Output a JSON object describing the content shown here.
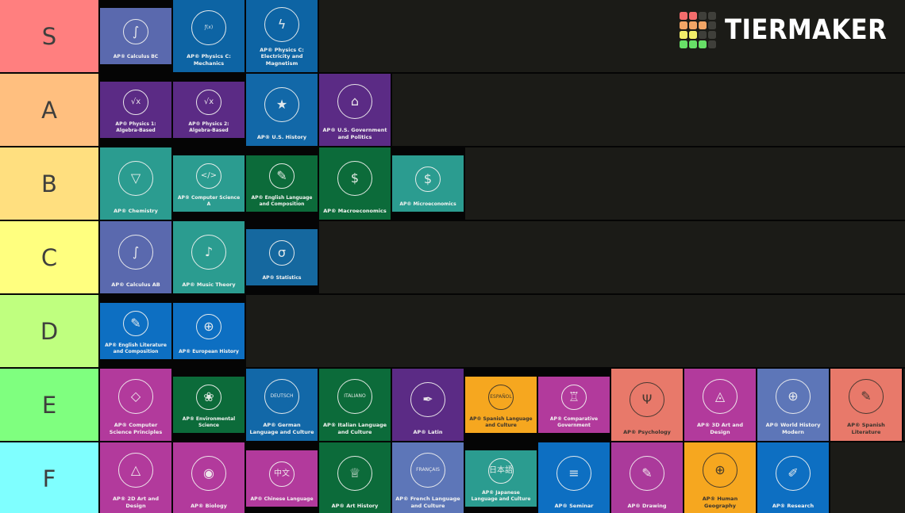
{
  "logo": {
    "text": "TIERMAKER",
    "grid": [
      [
        "#f36c6c",
        "#f36c6c",
        "#3f3f3a",
        "#3f3f3a"
      ],
      [
        "#f2a566",
        "#f2a566",
        "#f2a566",
        "#3f3f3a"
      ],
      [
        "#f2ee69",
        "#f2ee69",
        "#3f3f3a",
        "#3f3f3a"
      ],
      [
        "#67df67",
        "#67df67",
        "#67df67",
        "#3f3f3a"
      ]
    ]
  },
  "tiers": [
    {
      "label": "S",
      "color": "#ff7f7f",
      "cards": [
        {
          "title": "AP® Calculus BC",
          "bg": "#5a69ae",
          "dark": false,
          "letterbox": true,
          "icon": "calculator-formulas-icon",
          "glyph": "∫"
        },
        {
          "title": "AP® Physics C: Mechanics",
          "bg": "#0d64a4",
          "dark": false,
          "letterbox": false,
          "icon": "robot-arm-function-icon",
          "glyph": "ƒ(x)"
        },
        {
          "title": "AP® Physics C: Electricity and Magnetism",
          "bg": "#0d64a4",
          "dark": false,
          "letterbox": false,
          "icon": "lightbulb-circuit-icon",
          "glyph": "ϟ"
        }
      ]
    },
    {
      "label": "A",
      "color": "#ffbf7f",
      "cards": [
        {
          "title": "AP® Physics 1: Algebra-Based",
          "bg": "#5b2b85",
          "dark": false,
          "letterbox": true,
          "icon": "popcorn-equation-icon",
          "glyph": "√x"
        },
        {
          "title": "AP® Physics 2: Algebra-Based",
          "bg": "#5b2b85",
          "dark": false,
          "letterbox": true,
          "icon": "pyramid-equation-icon",
          "glyph": "√x"
        },
        {
          "title": "AP® U.S. History",
          "bg": "#1268a8",
          "dark": false,
          "letterbox": false,
          "icon": "flag-liberty-bell-icon",
          "glyph": "★"
        },
        {
          "title": "AP® U.S. Government and Politics",
          "bg": "#5b2b85",
          "dark": false,
          "letterbox": false,
          "icon": "capitol-building-icon",
          "glyph": "⌂"
        }
      ]
    },
    {
      "label": "B",
      "color": "#ffdf7f",
      "cards": [
        {
          "title": "AP® Chemistry",
          "bg": "#2b9c90",
          "dark": false,
          "letterbox": false,
          "icon": "flask-molecules-icon",
          "glyph": "▽"
        },
        {
          "title": "AP® Computer Science A",
          "bg": "#2b9c90",
          "dark": false,
          "letterbox": true,
          "icon": "monitor-code-icon",
          "glyph": "</>"
        },
        {
          "title": "AP® English Language and Composition",
          "bg": "#0c6b3a",
          "dark": false,
          "letterbox": true,
          "icon": "laptop-books-icon",
          "glyph": "✎"
        },
        {
          "title": "AP® Macroeconomics",
          "bg": "#0c6b3a",
          "dark": false,
          "letterbox": false,
          "icon": "globe-shipping-icon",
          "glyph": "$"
        },
        {
          "title": "AP® Microeconomics",
          "bg": "#2b9c90",
          "dark": false,
          "letterbox": true,
          "icon": "jar-chart-icon",
          "glyph": "$"
        }
      ]
    },
    {
      "label": "C",
      "color": "#ffff7f",
      "cards": [
        {
          "title": "AP® Calculus AB",
          "bg": "#5a69ae",
          "dark": false,
          "letterbox": false,
          "icon": "calculator-derivative-icon",
          "glyph": "∫"
        },
        {
          "title": "AP® Music Theory",
          "bg": "#2b9c90",
          "dark": false,
          "letterbox": false,
          "icon": "music-laptop-icon",
          "glyph": "♪"
        },
        {
          "title": "AP® Statistics",
          "bg": "#15689f",
          "dark": false,
          "letterbox": true,
          "icon": "histogram-curve-icon",
          "glyph": "σ"
        }
      ]
    },
    {
      "label": "D",
      "color": "#bfff7f",
      "cards": [
        {
          "title": "AP® English Literature and Composition",
          "bg": "#0d6fc2",
          "dark": false,
          "letterbox": true,
          "icon": "open-book-quill-icon",
          "glyph": "✎"
        },
        {
          "title": "AP® European History",
          "bg": "#0d6fc2",
          "dark": false,
          "letterbox": true,
          "icon": "globe-magnifier-icon",
          "glyph": "⊕"
        }
      ]
    },
    {
      "label": "E",
      "color": "#7fff7f",
      "cards": [
        {
          "title": "AP® Computer Science Principles",
          "bg": "#b23a9c",
          "dark": false,
          "letterbox": false,
          "icon": "flowchart-laptop-icon",
          "glyph": "◇"
        },
        {
          "title": "AP® Environmental Science",
          "bg": "#0c6b3a",
          "dark": false,
          "letterbox": true,
          "icon": "globe-plants-icon",
          "glyph": "❀"
        },
        {
          "title": "AP® German Language and Culture",
          "bg": "#1268a8",
          "dark": false,
          "letterbox": false,
          "icon": "deutsch-crest-icon",
          "glyph": "DEUTSCH"
        },
        {
          "title": "AP® Italian Language and Culture",
          "bg": "#0c6b3a",
          "dark": false,
          "letterbox": false,
          "icon": "italiano-crest-icon",
          "glyph": "ITALIANO"
        },
        {
          "title": "AP® Latin",
          "bg": "#5b2b85",
          "dark": false,
          "letterbox": false,
          "icon": "roman-bust-scroll-icon",
          "glyph": "✒"
        },
        {
          "title": "AP® Spanish Language and Culture",
          "bg": "#f6a71f",
          "dark": true,
          "letterbox": true,
          "icon": "espanol-crest-icon",
          "glyph": "ESPAÑOL"
        },
        {
          "title": "AP® Comparative Government",
          "bg": "#b23a9c",
          "dark": false,
          "letterbox": true,
          "icon": "government-figure-icon",
          "glyph": "♖"
        },
        {
          "title": "AP® Psychology",
          "bg": "#e8796a",
          "dark": true,
          "letterbox": false,
          "icon": "brain-head-icon",
          "glyph": "Ψ"
        },
        {
          "title": "AP® 3D Art and Design",
          "bg": "#b23a9c",
          "dark": false,
          "letterbox": false,
          "icon": "pyramid-hand-icon",
          "glyph": "◬"
        },
        {
          "title": "AP® World History Modern",
          "bg": "#5d76b8",
          "dark": false,
          "letterbox": false,
          "icon": "books-globe-icon",
          "glyph": "⊕"
        },
        {
          "title": "AP® Spanish Literature",
          "bg": "#e8796a",
          "dark": true,
          "letterbox": false,
          "icon": "book-magnifier-icon",
          "glyph": "✎"
        }
      ]
    },
    {
      "label": "F",
      "color": "#7fffff",
      "cards": [
        {
          "title": "AP® 2D Art and Design",
          "bg": "#b23a9c",
          "dark": false,
          "letterbox": false,
          "icon": "triangle-hands-cycle-icon",
          "glyph": "△"
        },
        {
          "title": "AP® Biology",
          "bg": "#b23a9c",
          "dark": false,
          "letterbox": false,
          "icon": "cell-dna-icon",
          "glyph": "◉"
        },
        {
          "title": "AP® Chinese Language",
          "bg": "#b23a9c",
          "dark": false,
          "letterbox": true,
          "icon": "chinese-crest-icon",
          "glyph": "中文"
        },
        {
          "title": "AP® Art History",
          "bg": "#0c6b3a",
          "dark": false,
          "letterbox": false,
          "icon": "statue-pagoda-icon",
          "glyph": "♕"
        },
        {
          "title": "AP® French Language and Culture",
          "bg": "#5d76b8",
          "dark": false,
          "letterbox": false,
          "icon": "francais-crest-icon",
          "glyph": "FRANÇAIS"
        },
        {
          "title": "AP® Japanese Language and Culture",
          "bg": "#2b9c90",
          "dark": false,
          "letterbox": true,
          "icon": "japanese-crest-icon",
          "glyph": "日本語"
        },
        {
          "title": "AP® Seminar",
          "bg": "#0d6fc2",
          "dark": false,
          "letterbox": false,
          "icon": "people-document-icon",
          "glyph": "≡"
        },
        {
          "title": "AP® Drawing",
          "bg": "#ab3a9b",
          "dark": false,
          "letterbox": false,
          "icon": "triangle-hand-drawing-icon",
          "glyph": "✎"
        },
        {
          "title": "AP® Human Geography",
          "bg": "#f6a71f",
          "dark": true,
          "letterbox": false,
          "icon": "landscape-people-icon",
          "glyph": "⊕"
        },
        {
          "title": "AP® Research",
          "bg": "#0d6fc2",
          "dark": false,
          "letterbox": false,
          "icon": "magnifier-laptop-icon",
          "glyph": "✐"
        }
      ]
    }
  ]
}
